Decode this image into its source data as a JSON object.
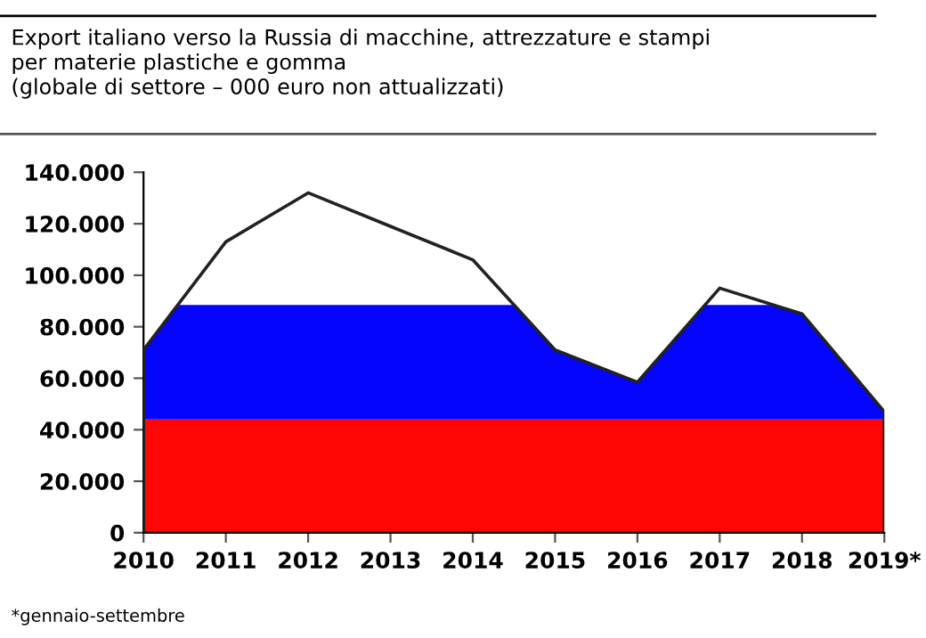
{
  "chart_data": {
    "type": "area",
    "title": "Export italiano verso la Russia di macchine, attrezzature e stampi\nper materie plastiche e gomma\n(globale di settore – 000 euro non attualizzati)",
    "categories": [
      "2010",
      "2011",
      "2012",
      "2013",
      "2014",
      "2015",
      "2016",
      "2017",
      "2018",
      "2019*"
    ],
    "series": [
      {
        "color": "#222222",
        "values": [
          71000,
          113000,
          132000,
          119000,
          106000,
          71000,
          58500,
          95000,
          85000,
          47000
        ]
      }
    ],
    "bands": [
      {
        "axis": "y",
        "from": 0,
        "to": 44000,
        "color": "#ff0000"
      },
      {
        "axis": "y",
        "from": 44000,
        "to": 88500,
        "color": "#0000ff"
      }
    ],
    "ylim": [
      0,
      140000
    ],
    "yticks": [
      {
        "value": 0,
        "label": "0"
      },
      {
        "value": 20000,
        "label": "20.000"
      },
      {
        "value": 40000,
        "label": "40.000"
      },
      {
        "value": 60000,
        "label": "60.000"
      },
      {
        "value": 80000,
        "label": "80.000"
      },
      {
        "value": 100000,
        "label": "100.000"
      },
      {
        "value": 120000,
        "label": "120.000"
      },
      {
        "value": 140000,
        "label": "140.000"
      }
    ],
    "annotations": [
      "*gennaio-settembre"
    ],
    "grid": false,
    "legend": false
  }
}
